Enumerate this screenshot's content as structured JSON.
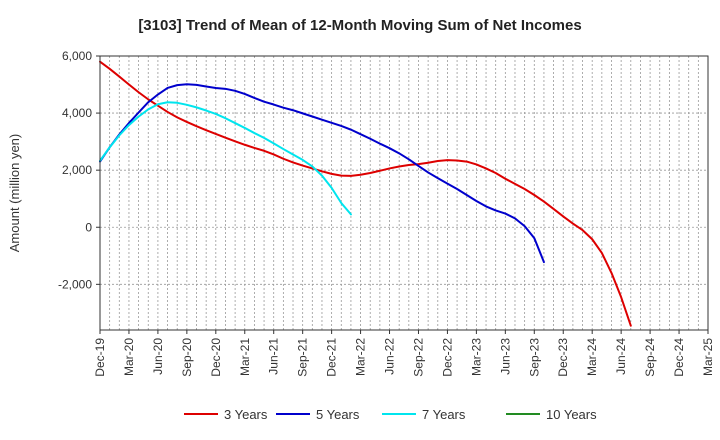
{
  "chart_data": {
    "type": "line",
    "title": "[3103]  Trend of Mean of 12-Month Moving Sum of Net Incomes",
    "ylabel": "Amount (million yen)",
    "xlabel": "",
    "ylim": [
      -3600,
      6000
    ],
    "yticks": [
      6000,
      4000,
      2000,
      0,
      -2000
    ],
    "ytick_labels": [
      "6,000",
      "4,000",
      "2,000",
      "0",
      "-2,000"
    ],
    "categories": [
      "Dec-19",
      "Mar-20",
      "Jun-20",
      "Sep-20",
      "Dec-20",
      "Mar-21",
      "Jun-21",
      "Sep-21",
      "Dec-21",
      "Mar-22",
      "Jun-22",
      "Sep-22",
      "Dec-22",
      "Mar-23",
      "Jun-23",
      "Sep-23",
      "Dec-23",
      "Mar-24",
      "Jun-24",
      "Sep-24",
      "Dec-24",
      "Mar-25"
    ],
    "grid": true,
    "legend_position": "bottom",
    "series": [
      {
        "name": "3 Years",
        "color": "#dd0000",
        "points": [
          [
            0,
            5800
          ],
          [
            1,
            5550
          ],
          [
            2,
            5280
          ],
          [
            3,
            5000
          ],
          [
            4,
            4730
          ],
          [
            5,
            4480
          ],
          [
            6,
            4260
          ],
          [
            7,
            4040
          ],
          [
            8,
            3850
          ],
          [
            9,
            3690
          ],
          [
            10,
            3540
          ],
          [
            11,
            3400
          ],
          [
            12,
            3270
          ],
          [
            13,
            3140
          ],
          [
            14,
            3010
          ],
          [
            15,
            2890
          ],
          [
            16,
            2780
          ],
          [
            17,
            2680
          ],
          [
            18,
            2550
          ],
          [
            19,
            2400
          ],
          [
            20,
            2270
          ],
          [
            21,
            2160
          ],
          [
            22,
            2060
          ],
          [
            23,
            1960
          ],
          [
            24,
            1870
          ],
          [
            25,
            1810
          ],
          [
            26,
            1800
          ],
          [
            27,
            1840
          ],
          [
            28,
            1900
          ],
          [
            29,
            1980
          ],
          [
            30,
            2060
          ],
          [
            31,
            2130
          ],
          [
            32,
            2180
          ],
          [
            33,
            2210
          ],
          [
            34,
            2260
          ],
          [
            35,
            2320
          ],
          [
            36,
            2350
          ],
          [
            37,
            2340
          ],
          [
            38,
            2300
          ],
          [
            39,
            2200
          ],
          [
            40,
            2060
          ],
          [
            41,
            1900
          ],
          [
            42,
            1700
          ],
          [
            43,
            1520
          ],
          [
            44,
            1340
          ],
          [
            45,
            1130
          ],
          [
            46,
            900
          ],
          [
            47,
            640
          ],
          [
            48,
            380
          ],
          [
            49,
            130
          ],
          [
            50,
            -100
          ],
          [
            51,
            -420
          ],
          [
            52,
            -900
          ],
          [
            53,
            -1600
          ],
          [
            54,
            -2450
          ],
          [
            55,
            -3450
          ]
        ]
      },
      {
        "name": "5 Years",
        "color": "#0000cc",
        "points": [
          [
            0,
            2300
          ],
          [
            1,
            2800
          ],
          [
            2,
            3250
          ],
          [
            3,
            3650
          ],
          [
            4,
            4020
          ],
          [
            5,
            4380
          ],
          [
            6,
            4650
          ],
          [
            7,
            4880
          ],
          [
            8,
            4980
          ],
          [
            9,
            5010
          ],
          [
            10,
            4990
          ],
          [
            11,
            4930
          ],
          [
            12,
            4880
          ],
          [
            13,
            4850
          ],
          [
            14,
            4780
          ],
          [
            15,
            4670
          ],
          [
            16,
            4530
          ],
          [
            17,
            4400
          ],
          [
            18,
            4300
          ],
          [
            19,
            4190
          ],
          [
            20,
            4100
          ],
          [
            21,
            3990
          ],
          [
            22,
            3880
          ],
          [
            23,
            3770
          ],
          [
            24,
            3660
          ],
          [
            25,
            3550
          ],
          [
            26,
            3420
          ],
          [
            27,
            3260
          ],
          [
            28,
            3100
          ],
          [
            29,
            2930
          ],
          [
            30,
            2770
          ],
          [
            31,
            2590
          ],
          [
            32,
            2380
          ],
          [
            33,
            2150
          ],
          [
            34,
            1920
          ],
          [
            35,
            1720
          ],
          [
            36,
            1530
          ],
          [
            37,
            1340
          ],
          [
            38,
            1130
          ],
          [
            39,
            920
          ],
          [
            40,
            730
          ],
          [
            41,
            590
          ],
          [
            42,
            480
          ],
          [
            43,
            310
          ],
          [
            44,
            40
          ],
          [
            45,
            -380
          ],
          [
            46,
            -1220
          ]
        ]
      },
      {
        "name": "7 Years",
        "color": "#00e5ee",
        "points": [
          [
            0,
            2330
          ],
          [
            1,
            2800
          ],
          [
            2,
            3220
          ],
          [
            3,
            3580
          ],
          [
            4,
            3880
          ],
          [
            5,
            4130
          ],
          [
            6,
            4310
          ],
          [
            7,
            4380
          ],
          [
            8,
            4360
          ],
          [
            9,
            4290
          ],
          [
            10,
            4200
          ],
          [
            11,
            4090
          ],
          [
            12,
            3970
          ],
          [
            13,
            3820
          ],
          [
            14,
            3650
          ],
          [
            15,
            3480
          ],
          [
            16,
            3300
          ],
          [
            17,
            3130
          ],
          [
            18,
            2940
          ],
          [
            19,
            2740
          ],
          [
            20,
            2550
          ],
          [
            21,
            2360
          ],
          [
            22,
            2130
          ],
          [
            23,
            1810
          ],
          [
            24,
            1380
          ],
          [
            25,
            850
          ],
          [
            26,
            450
          ]
        ]
      },
      {
        "name": "10 Years",
        "color": "#228b22",
        "points": []
      }
    ]
  }
}
